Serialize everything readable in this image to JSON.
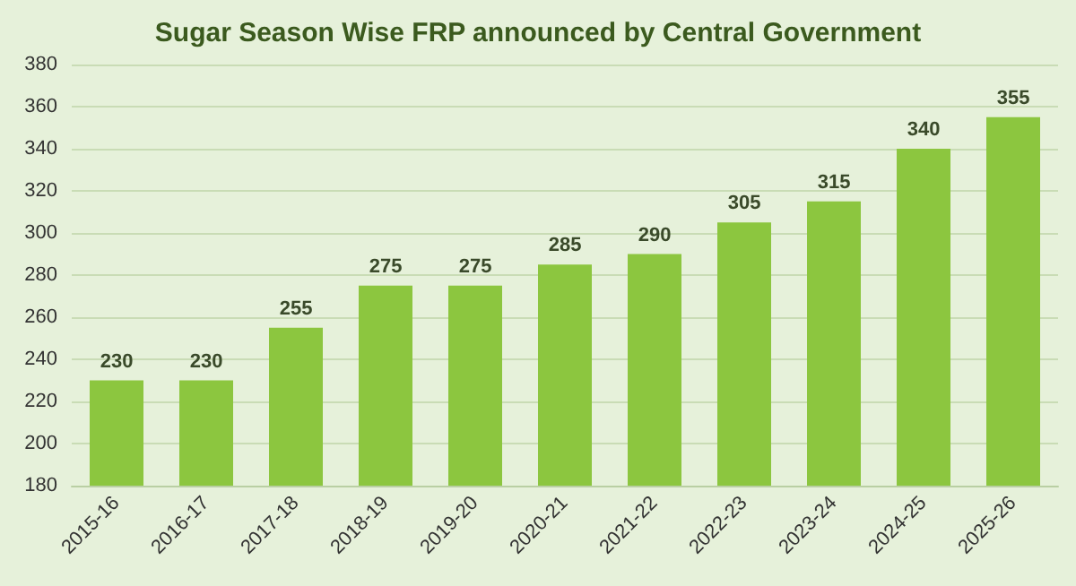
{
  "chart_data": {
    "type": "bar",
    "title": "Sugar Season Wise FRP announced by Central Government",
    "categories": [
      "2015-16",
      "2016-17",
      "2017-18",
      "2018-19",
      "2019-20",
      "2020-21",
      "2021-22",
      "2022-23",
      "2023-24",
      "2024-25",
      "2025-26"
    ],
    "values": [
      230,
      230,
      255,
      275,
      275,
      285,
      290,
      305,
      315,
      340,
      355
    ],
    "color": "#8cc63f",
    "ylim": [
      180,
      380
    ],
    "yticks": [
      180,
      200,
      220,
      240,
      260,
      280,
      300,
      320,
      340,
      360,
      380
    ],
    "grid": "y",
    "data_labels": true
  }
}
